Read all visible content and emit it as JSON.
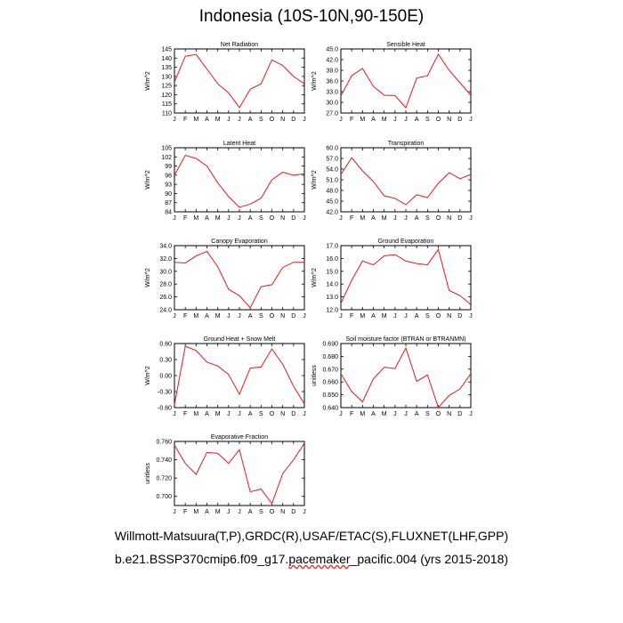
{
  "title": "Indonesia (10S-10N,90-150E)",
  "months": [
    "J",
    "F",
    "M",
    "A",
    "M",
    "J",
    "J",
    "A",
    "S",
    "O",
    "N",
    "D",
    "J"
  ],
  "chart_data": [
    {
      "type": "line",
      "title": "Net Radiation",
      "ylabel": "W/m^2",
      "ylim": [
        110,
        145
      ],
      "yticks": [
        "110",
        "115",
        "120",
        "125",
        "130",
        "135",
        "140",
        "145"
      ],
      "values": [
        127,
        141,
        142,
        134,
        126,
        121,
        113,
        123,
        126,
        139,
        136,
        130,
        126
      ]
    },
    {
      "type": "line",
      "title": "Sensible Heat",
      "ylabel": "W/m^2",
      "ylim": [
        27,
        45
      ],
      "yticks": [
        "27.0",
        "30.0",
        "33.0",
        "36.0",
        "39.0",
        "42.0",
        "45.0"
      ],
      "values": [
        31.8,
        37.5,
        39.5,
        34.5,
        32.0,
        31.9,
        28.5,
        36.8,
        37.5,
        43.5,
        39.0,
        35.5,
        32.0
      ]
    },
    {
      "type": "line",
      "title": "Latent Heat",
      "ylabel": "W/m^2",
      "ylim": [
        84,
        105
      ],
      "yticks": [
        "84",
        "87",
        "90",
        "93",
        "96",
        "99",
        "102",
        "105"
      ],
      "values": [
        96,
        102.5,
        101.5,
        99,
        93.5,
        89,
        85.5,
        86.5,
        88.5,
        94.5,
        97,
        96,
        96.5
      ]
    },
    {
      "type": "line",
      "title": "Transpiration",
      "ylabel": "W/m^2",
      "ylim": [
        42,
        60
      ],
      "yticks": [
        "42.0",
        "45.0",
        "48.0",
        "51.0",
        "54.0",
        "57.0",
        "60.0"
      ],
      "values": [
        52.5,
        57.2,
        53.5,
        50.5,
        46.5,
        45.8,
        44.0,
        46.8,
        46.0,
        50.0,
        53.0,
        51.3,
        52.5
      ]
    },
    {
      "type": "line",
      "title": "Canopy Evaporation",
      "ylabel": "W/m^2",
      "ylim": [
        24,
        34
      ],
      "yticks": [
        "24.0",
        "26.0",
        "28.0",
        "30.0",
        "32.0",
        "34.0"
      ],
      "values": [
        31.4,
        31.3,
        32.4,
        33.1,
        30.7,
        27.2,
        26.2,
        24.3,
        27.6,
        27.9,
        30.6,
        31.4,
        31.4
      ]
    },
    {
      "type": "line",
      "title": "Ground Evaporation",
      "ylabel": "W/m^2",
      "ylim": [
        12,
        17
      ],
      "yticks": [
        "12.0",
        "13.0",
        "14.0",
        "15.0",
        "16.0",
        "17.0"
      ],
      "values": [
        12.5,
        14.3,
        15.8,
        15.5,
        16.2,
        16.3,
        15.8,
        15.6,
        15.5,
        16.7,
        13.5,
        13.1,
        12.4
      ]
    },
    {
      "type": "line",
      "title": "Ground Heat + Snow Melt",
      "ylabel": "W/m^2",
      "ylim": [
        -0.6,
        0.6
      ],
      "yticks": [
        "-0.60",
        "-0.30",
        "0.00",
        "0.30",
        "0.60"
      ],
      "values": [
        -0.55,
        0.55,
        0.47,
        0.25,
        0.18,
        0.02,
        -0.35,
        0.14,
        0.16,
        0.5,
        0.21,
        -0.2,
        -0.53
      ]
    },
    {
      "type": "line",
      "title": "Soil moisture factor (BTRAN or BTRANMN)",
      "ylabel": "unitless",
      "ylim": [
        0.64,
        0.69
      ],
      "yticks": [
        "0.640",
        "0.650",
        "0.660",
        "0.670",
        "0.680",
        "0.690"
      ],
      "values": [
        0.6665,
        0.6525,
        0.6445,
        0.6625,
        0.6715,
        0.6705,
        0.6865,
        0.6605,
        0.6655,
        0.64,
        0.6495,
        0.6545,
        0.6665
      ]
    },
    {
      "type": "line",
      "title": "Evaporative Fraction",
      "ylabel": "unitless",
      "ylim": [
        0.69,
        0.76
      ],
      "yticks": [
        "0.700",
        "0.720",
        "0.740",
        "0.760"
      ],
      "values": [
        0.756,
        0.736,
        0.724,
        0.748,
        0.747,
        0.736,
        0.751,
        0.705,
        0.708,
        0.692,
        0.725,
        0.74,
        0.758
      ]
    }
  ],
  "footer": {
    "line1": "Willmott-Matsuura(T,P),GRDC(R),USAF/ETAC(S),FLUXNET(LHF,GPP)",
    "line2_a": "b.e21.BSSP370cmip6.f09_g17.",
    "line2_b": "pacemaker",
    "line2_c": "_pacific.004 (yrs 2015-2018)"
  },
  "colors": {
    "line": "#e41a1c",
    "axis": "#000000"
  }
}
